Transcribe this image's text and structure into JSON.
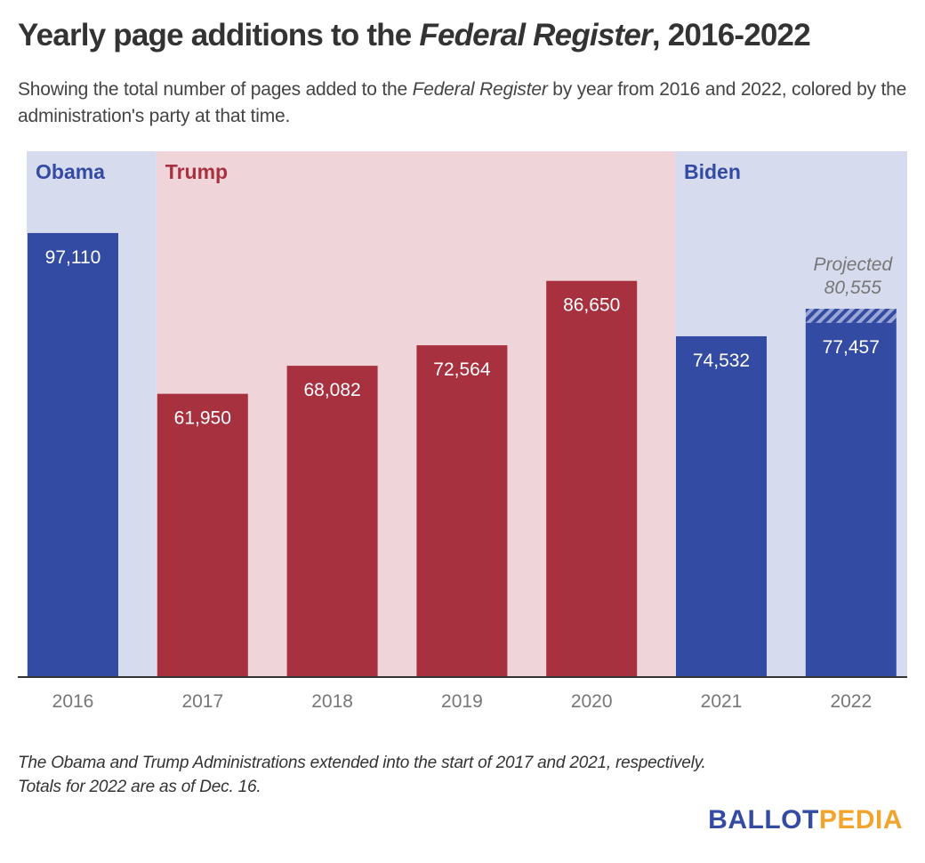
{
  "header": {
    "title_pre": "Yearly page additions to the ",
    "title_italic": "Federal Register",
    "title_post": ", 2016-2022",
    "subtitle_pre": "Showing the total number of pages added to the ",
    "subtitle_italic": "Federal Register",
    "subtitle_post": " by year from 2016 and 2022, colored by the administration's party at that time."
  },
  "footer": {
    "note_line1": "The Obama and Trump Administrations extended into the start of 2017 and 2021, respectively.",
    "note_line2": "Totals for 2022 are as of Dec. 16.",
    "logo_part1": "BALLOT",
    "logo_part2": "PEDIA"
  },
  "colors": {
    "democrat": "#334ba3",
    "republican": "#a8313f",
    "democrat_band": "#d6dbee",
    "republican_band": "#efd5d9",
    "axis_text": "#777777",
    "projected_text": "#777777"
  },
  "chart_data": {
    "type": "bar",
    "title": "Yearly page additions to the Federal Register, 2016-2022",
    "xlabel": "",
    "ylabel": "",
    "ylim": [
      0,
      115000
    ],
    "grid": false,
    "categories": [
      "2016",
      "2017",
      "2018",
      "2019",
      "2020",
      "2021",
      "2022"
    ],
    "values": [
      97110,
      61950,
      68082,
      72564,
      86650,
      74532,
      77457
    ],
    "value_labels": [
      "97,110",
      "61,950",
      "68,082",
      "72,564",
      "86,650",
      "74,532",
      "77,457"
    ],
    "party": [
      "D",
      "R",
      "R",
      "R",
      "R",
      "D",
      "D"
    ],
    "bands": [
      {
        "label": "Obama",
        "party": "D",
        "from": "2016",
        "to": "2016"
      },
      {
        "label": "Trump",
        "party": "R",
        "from": "2017",
        "to": "2020"
      },
      {
        "label": "Biden",
        "party": "D",
        "from": "2021",
        "to": "2022"
      }
    ],
    "projection": {
      "category": "2022",
      "value": 80555,
      "label_line1": "Projected",
      "label_line2": "80,555"
    }
  }
}
